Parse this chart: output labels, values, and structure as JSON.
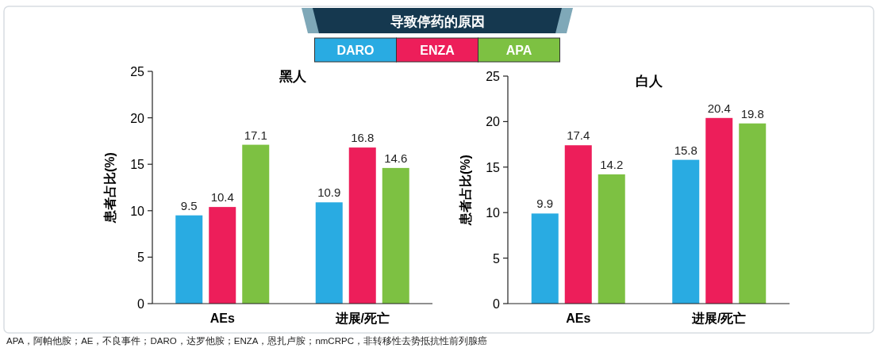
{
  "chart_data": [
    {
      "type": "bar",
      "title": "黑人",
      "ylabel": "患者占比(%)",
      "categories": [
        "AEs",
        "进展/死亡"
      ],
      "series": [
        {
          "name": "DARO",
          "color": "#29abe2",
          "values": [
            9.5,
            10.9
          ]
        },
        {
          "name": "ENZA",
          "color": "#ed1e5a",
          "values": [
            10.4,
            16.8
          ]
        },
        {
          "name": "APA",
          "color": "#7dc142",
          "values": [
            17.1,
            14.6
          ]
        }
      ],
      "ylim": [
        0,
        25
      ],
      "yticks": [
        0,
        5,
        10,
        15,
        20,
        25
      ],
      "data_labels": true,
      "legend": "top",
      "annotations": [
        "导致停药的原因",
        "APA，阿帕他胺；AE，不良事件；DARO，达罗他胺；ENZA，恩扎卢胺；nmCRPC，非转移性去势抵抗性前列腺癌"
      ]
    },
    {
      "type": "bar",
      "title": "白人",
      "ylabel": "患者占比(%)",
      "categories": [
        "AEs",
        "进展/死亡"
      ],
      "series": [
        {
          "color": "#29abe2",
          "values": [
            9.9,
            15.8
          ]
        },
        {
          "color": "#ed1e5a",
          "values": [
            17.4,
            20.4
          ]
        },
        {
          "color": "#7dc142",
          "values": [
            14.2,
            19.8
          ]
        }
      ],
      "ylim": [
        0,
        25
      ],
      "yticks": [
        0,
        5,
        10,
        15,
        20,
        25
      ],
      "data_labels": true
    }
  ]
}
